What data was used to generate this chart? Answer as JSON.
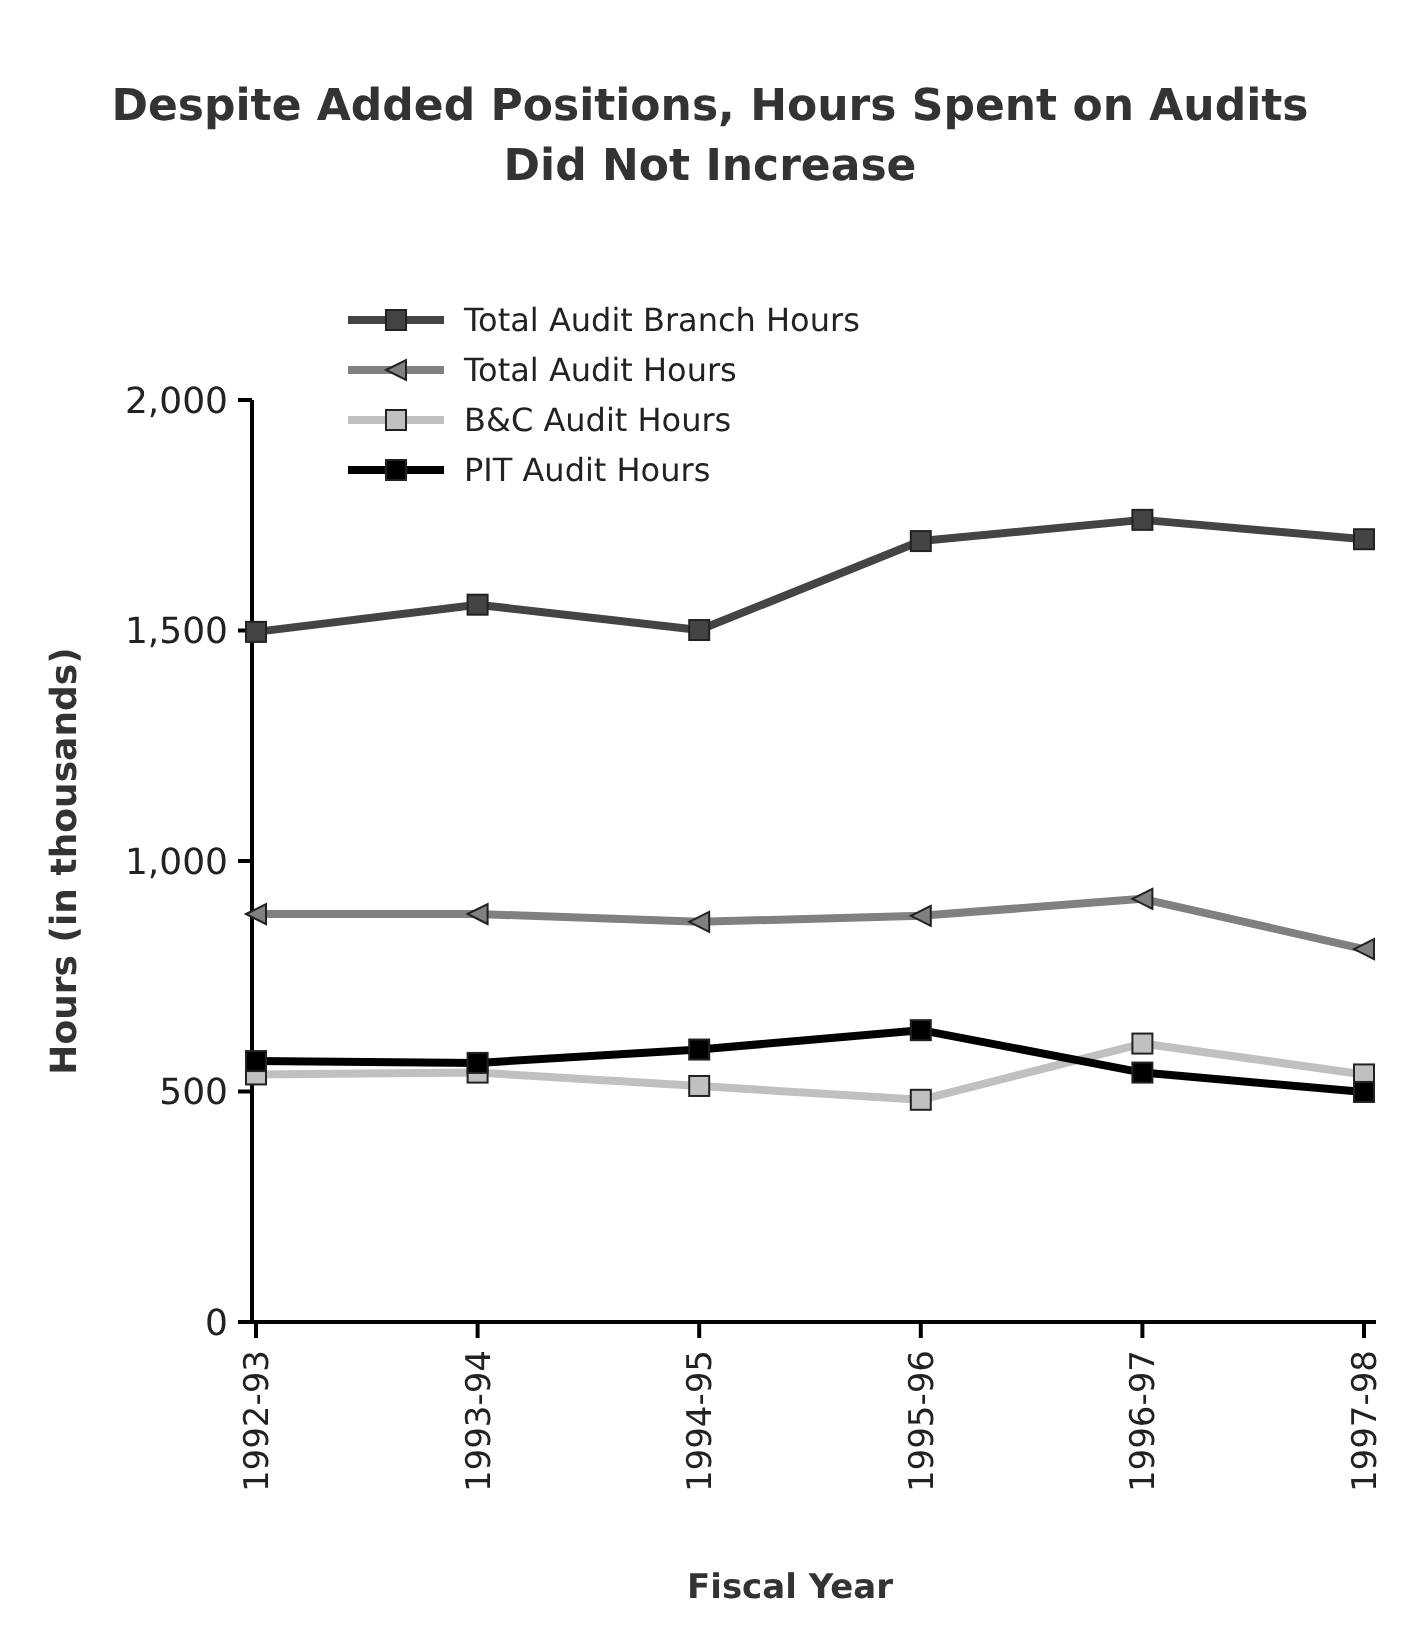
{
  "chart_data": {
    "type": "line",
    "title": "Despite Added Positions, Hours Spent on Audits Did Not Increase",
    "xlabel": "Fiscal Year",
    "ylabel": "Hours (in thousands)",
    "categories": [
      "1992-93",
      "1993-94",
      "1994-95",
      "1995-96",
      "1996-97",
      "1997-98"
    ],
    "ylim": [
      0,
      2000
    ],
    "yticks": [
      {
        "value": 0,
        "label": "0"
      },
      {
        "value": 500,
        "label": "500"
      },
      {
        "value": 1000,
        "label": "1,000"
      },
      {
        "value": 1500,
        "label": "1,500"
      },
      {
        "value": 2000,
        "label": "2,000"
      }
    ],
    "grid": false,
    "legend": "top left",
    "line_style": "solid",
    "series": [
      {
        "name": "Total Audit Branch Hours",
        "color": "#444444",
        "marker": "square",
        "values": [
          1497,
          1556,
          1501,
          1694,
          1740,
          1698
        ]
      },
      {
        "name": "Total Audit Hours",
        "color": "#808080",
        "marker": "triangle",
        "values": [
          885,
          885,
          868,
          881,
          918,
          809
        ]
      },
      {
        "name": "B&C Audit Hours",
        "color": "#c0c0c0",
        "marker": "square",
        "values": [
          537,
          541,
          512,
          482,
          604,
          537
        ]
      },
      {
        "name": "PIT  Audit Hours",
        "color": "#000000",
        "marker": "square",
        "values": [
          566,
          562,
          591,
          633,
          541,
          499
        ]
      }
    ]
  }
}
